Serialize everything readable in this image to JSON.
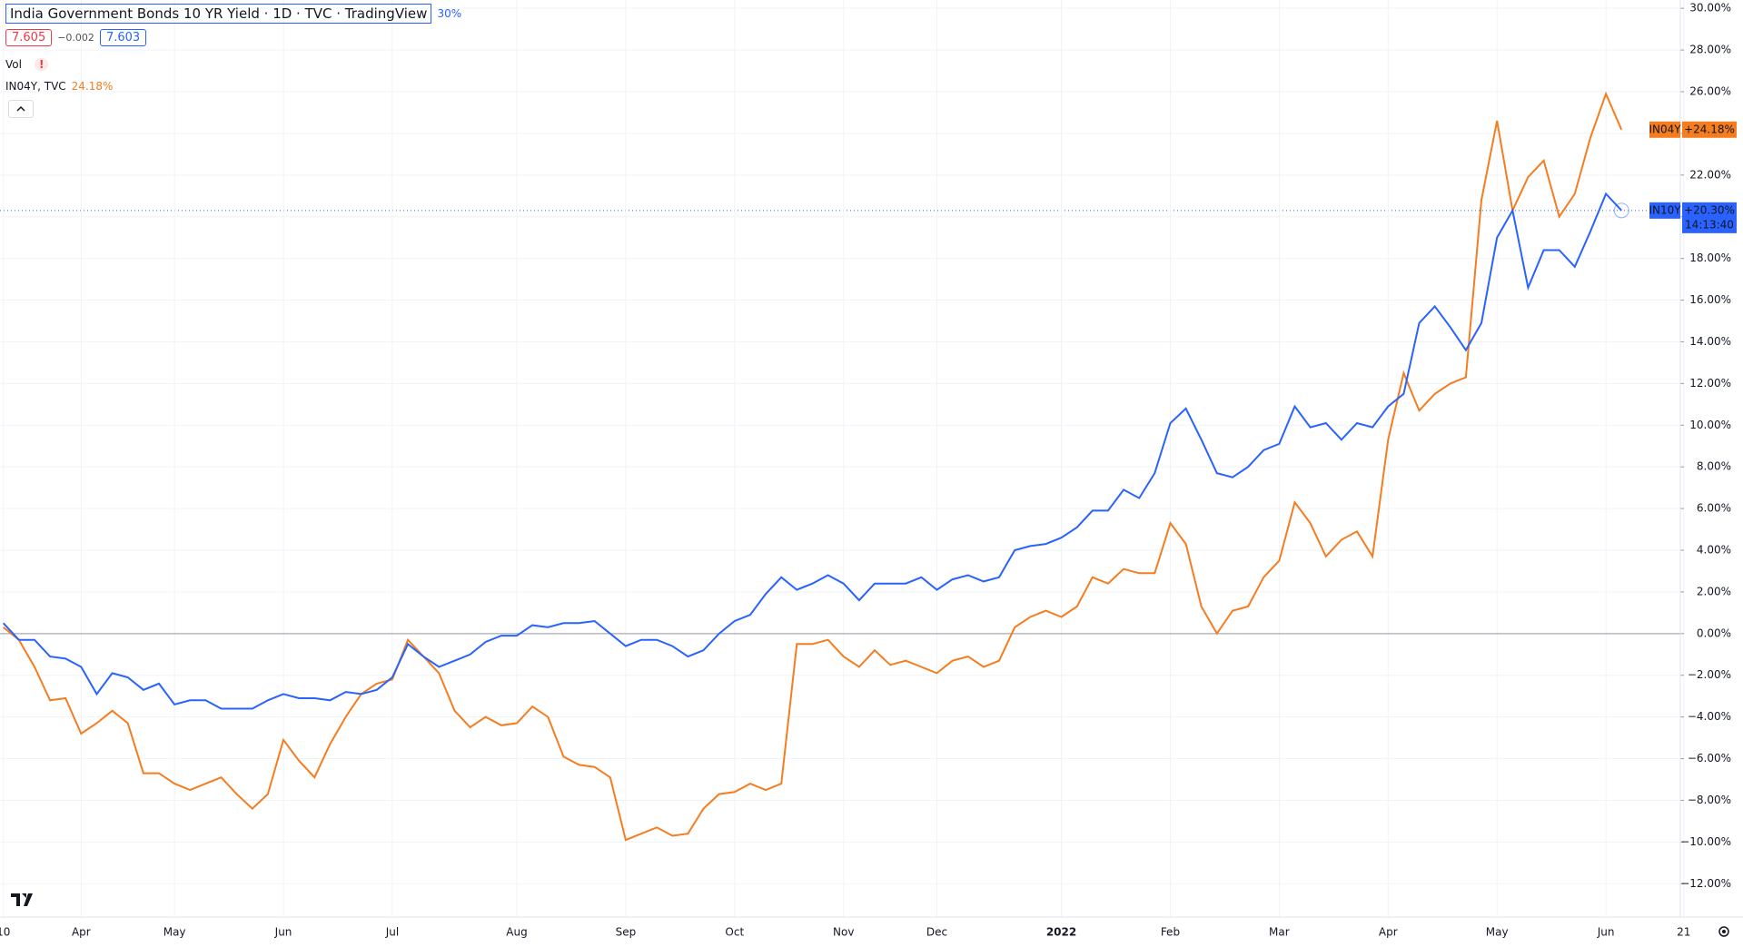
{
  "chart_data": {
    "type": "line",
    "title": "India Government Bonds 10 YR Yield · 1D · TVC · TradingView",
    "title_suffix": "30%",
    "header": {
      "open": "7.605",
      "change": "−0.002",
      "close": "7.603",
      "volume_label": "Vol",
      "alert": "!",
      "compare_name": "IN04Y, TVC",
      "compare_value": "24.18%"
    },
    "countdown": "14:13:40",
    "categories": [
      "10",
      null,
      null,
      null,
      null,
      "Apr",
      null,
      null,
      null,
      null,
      null,
      "May",
      null,
      null,
      null,
      null,
      null,
      null,
      "Jun",
      null,
      null,
      null,
      null,
      null,
      null,
      "Jul",
      null,
      null,
      null,
      null,
      null,
      null,
      null,
      "Aug",
      null,
      null,
      null,
      null,
      null,
      null,
      "Sep",
      null,
      null,
      null,
      null,
      null,
      null,
      "Oct",
      null,
      null,
      null,
      null,
      null,
      null,
      "Nov",
      null,
      null,
      null,
      null,
      null,
      "Dec",
      null,
      null,
      null,
      null,
      null,
      null,
      null,
      "2022",
      null,
      null,
      null,
      null,
      null,
      null,
      "Feb",
      null,
      null,
      null,
      null,
      null,
      null,
      "Mar",
      null,
      null,
      null,
      null,
      null,
      null,
      "Apr",
      null,
      null,
      null,
      null,
      null,
      null,
      "May",
      null,
      null,
      null,
      null,
      null,
      null,
      "Jun",
      null,
      null,
      null,
      null,
      "21"
    ],
    "series": [
      {
        "name": "IN10Y",
        "color": "#2962ff",
        "last_label": "+20.30%",
        "values": [
          0.5,
          -0.3,
          -0.3,
          -1.1,
          -1.2,
          -1.6,
          -2.9,
          -1.9,
          -2.1,
          -2.7,
          -2.4,
          -3.4,
          -3.2,
          -3.2,
          -3.6,
          -3.6,
          -3.6,
          -3.2,
          -2.9,
          -3.1,
          -3.1,
          -3.2,
          -2.8,
          -2.9,
          -2.7,
          -2.1,
          -0.5,
          -1.1,
          -1.6,
          -1.3,
          -1.0,
          -0.4,
          -0.1,
          -0.1,
          0.4,
          0.3,
          0.5,
          0.5,
          0.6,
          0.0,
          -0.6,
          -0.3,
          -0.3,
          -0.6,
          -1.1,
          -0.8,
          0.0,
          0.6,
          0.9,
          1.9,
          2.7,
          2.1,
          2.4,
          2.8,
          2.4,
          1.6,
          2.4,
          2.4,
          2.4,
          2.7,
          2.1,
          2.6,
          2.8,
          2.5,
          2.7,
          4.0,
          4.2,
          4.3,
          4.6,
          5.1,
          5.9,
          5.9,
          6.9,
          6.5,
          7.7,
          10.1,
          10.8,
          9.3,
          7.7,
          7.5,
          8.0,
          8.8,
          9.1,
          10.9,
          9.9,
          10.1,
          9.3,
          10.1,
          9.9,
          10.9,
          11.5,
          14.9,
          15.7,
          14.7,
          13.6,
          14.9,
          19.0,
          20.3,
          16.6,
          18.4,
          18.4,
          17.6,
          19.3,
          21.1,
          20.3,
          null,
          null,
          null,
          null
        ]
      },
      {
        "name": "IN04Y",
        "color": "#f57c1f",
        "last_label": "+24.18%",
        "values": [
          0.3,
          -0.3,
          -1.6,
          -3.2,
          -3.1,
          -4.8,
          -4.3,
          -3.7,
          -4.3,
          -6.7,
          -6.7,
          -7.2,
          -7.5,
          -7.2,
          -6.9,
          -7.7,
          -8.4,
          -7.7,
          -5.1,
          -6.1,
          -6.9,
          -5.3,
          -4.0,
          -2.9,
          -2.4,
          -2.2,
          -0.3,
          -1.1,
          -1.9,
          -3.7,
          -4.5,
          -4.0,
          -4.4,
          -4.3,
          -3.5,
          -4.0,
          -5.9,
          -6.3,
          -6.4,
          -6.9,
          -9.9,
          -9.6,
          -9.3,
          -9.7,
          -9.6,
          -8.4,
          -7.7,
          -7.6,
          -7.2,
          -7.5,
          -7.2,
          -0.5,
          -0.5,
          -0.3,
          -1.1,
          -1.6,
          -0.8,
          -1.5,
          -1.3,
          -1.6,
          -1.9,
          -1.3,
          -1.1,
          -1.6,
          -1.3,
          0.3,
          0.8,
          1.1,
          0.8,
          1.3,
          2.7,
          2.4,
          3.1,
          2.9,
          2.9,
          5.3,
          4.3,
          1.3,
          0.0,
          1.1,
          1.3,
          2.7,
          3.5,
          6.3,
          5.3,
          3.7,
          4.5,
          4.9,
          3.7,
          9.3,
          12.5,
          10.7,
          11.5,
          12.0,
          12.3,
          20.8,
          24.6,
          20.3,
          21.9,
          22.7,
          20.0,
          21.1,
          23.8,
          25.9,
          24.18,
          null,
          null,
          null,
          null
        ]
      }
    ],
    "ylim": [
      -13.6,
      30.4
    ],
    "yticks": [
      {
        "value": 30,
        "label": "30.00%"
      },
      {
        "value": 28,
        "label": "28.00%"
      },
      {
        "value": 26,
        "label": "26.00%"
      },
      {
        "value": 24,
        "label": "24.00%"
      },
      {
        "value": 22,
        "label": "22.00%"
      },
      {
        "value": 20,
        "label": "20.00%"
      },
      {
        "value": 18,
        "label": "18.00%"
      },
      {
        "value": 16,
        "label": "16.00%"
      },
      {
        "value": 14,
        "label": "14.00%"
      },
      {
        "value": 12,
        "label": "12.00%"
      },
      {
        "value": 10,
        "label": "10.00%"
      },
      {
        "value": 8,
        "label": "8.00%"
      },
      {
        "value": 6,
        "label": "6.00%"
      },
      {
        "value": 4,
        "label": "4.00%"
      },
      {
        "value": 2,
        "label": "2.00%"
      },
      {
        "value": 0,
        "label": "0.00%"
      },
      {
        "value": -2,
        "label": "−2.00%"
      },
      {
        "value": -4,
        "label": "−4.00%"
      },
      {
        "value": -6,
        "label": "−6.00%"
      },
      {
        "value": -8,
        "label": "−8.00%"
      },
      {
        "value": -10,
        "label": "−10.00%"
      },
      {
        "value": -12,
        "label": "−12.00%"
      }
    ],
    "grid": true
  }
}
